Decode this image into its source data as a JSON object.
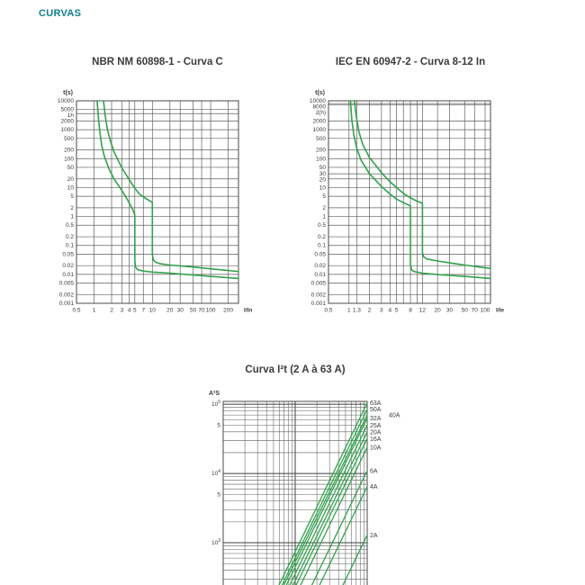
{
  "page": {
    "header": "CURVAS"
  },
  "colors": {
    "header_text": "#0d7c91",
    "title_text": "#3c3c3b",
    "axis_text": "#3c3c3b",
    "curve_green": "#31a24c",
    "grid": "#5f5f5f",
    "grid_major": "#3f3f3f",
    "border": "#4a4a4a",
    "background": "#ffffff"
  },
  "chart_data": [
    {
      "type": "line",
      "title": "NBR NM 60898-1 - Curva C",
      "ylabel": "t(s)",
      "xlabel": "I/In",
      "xscale": "log",
      "yscale": "log",
      "grid": true,
      "minor_grid": false,
      "xlim": [
        0.5,
        300
      ],
      "ylim": [
        0.001,
        10000
      ],
      "xticks": [
        {
          "v": 0.5,
          "l": "0.5"
        },
        {
          "v": 1,
          "l": "1"
        },
        {
          "v": 2,
          "l": "2"
        },
        {
          "v": 3,
          "l": "3"
        },
        {
          "v": 4,
          "l": "4"
        },
        {
          "v": 5,
          "l": "5"
        },
        {
          "v": 7,
          "l": "7"
        },
        {
          "v": 10,
          "l": "10"
        },
        {
          "v": 20,
          "l": "20"
        },
        {
          "v": 30,
          "l": "30"
        },
        {
          "v": 50,
          "l": "50"
        },
        {
          "v": 70,
          "l": "70"
        },
        {
          "v": 100,
          "l": "100"
        },
        {
          "v": 200,
          "l": "200"
        }
      ],
      "yticks": [
        {
          "v": 10000,
          "l": "10000"
        },
        {
          "v": 5000,
          "l": "5000"
        },
        {
          "v": 3600,
          "l": "1h"
        },
        {
          "v": 2000,
          "l": "2000"
        },
        {
          "v": 1000,
          "l": "1000"
        },
        {
          "v": 500,
          "l": "500"
        },
        {
          "v": 200,
          "l": "200"
        },
        {
          "v": 100,
          "l": "100"
        },
        {
          "v": 50,
          "l": "50"
        },
        {
          "v": 20,
          "l": "20"
        },
        {
          "v": 10,
          "l": "10"
        },
        {
          "v": 5,
          "l": "5"
        },
        {
          "v": 2,
          "l": "2"
        },
        {
          "v": 1,
          "l": "1"
        },
        {
          "v": 0.5,
          "l": "0.5"
        },
        {
          "v": 0.2,
          "l": "0.2"
        },
        {
          "v": 0.1,
          "l": "0.1"
        },
        {
          "v": 0.05,
          "l": "0.05"
        },
        {
          "v": 0.02,
          "l": "0.02"
        },
        {
          "v": 0.01,
          "l": "0.01"
        },
        {
          "v": 0.005,
          "l": "0.005"
        },
        {
          "v": 0.002,
          "l": "0.002"
        },
        {
          "v": 0.001,
          "l": "0.001"
        }
      ],
      "series": [
        {
          "name": "trip-min",
          "points": [
            [
              1.13,
              10000
            ],
            [
              1.18,
              3000
            ],
            [
              1.25,
              900
            ],
            [
              1.35,
              300
            ],
            [
              1.5,
              120
            ],
            [
              1.8,
              45
            ],
            [
              2.2,
              20
            ],
            [
              3,
              8
            ],
            [
              4,
              3
            ],
            [
              4.7,
              1.6
            ],
            [
              5,
              1.1
            ],
            [
              5,
              0.03
            ],
            [
              5.15,
              0.018
            ],
            [
              5.6,
              0.0145
            ],
            [
              7,
              0.013
            ],
            [
              10,
              0.012
            ],
            [
              20,
              0.011
            ],
            [
              50,
              0.0095
            ],
            [
              100,
              0.0085
            ],
            [
              300,
              0.0072
            ]
          ]
        },
        {
          "name": "trip-max",
          "points": [
            [
              1.45,
              10000
            ],
            [
              1.55,
              3200
            ],
            [
              1.7,
              1000
            ],
            [
              1.9,
              420
            ],
            [
              2.2,
              170
            ],
            [
              3,
              48
            ],
            [
              4,
              19
            ],
            [
              5,
              9.5
            ],
            [
              6,
              6
            ],
            [
              8,
              4
            ],
            [
              10,
              3.1
            ],
            [
              10,
              0.05
            ],
            [
              10.4,
              0.031
            ],
            [
              11.5,
              0.026
            ],
            [
              14,
              0.023
            ],
            [
              20,
              0.021
            ],
            [
              50,
              0.018
            ],
            [
              100,
              0.0155
            ],
            [
              300,
              0.0125
            ]
          ]
        }
      ]
    },
    {
      "type": "line",
      "title": "IEC EN 60947-2 - Curva 8-12 In",
      "ylabel": "t(s)",
      "xlabel": "I/Ie",
      "xscale": "log",
      "yscale": "log",
      "grid": true,
      "minor_grid": false,
      "xlim": [
        0.5,
        120
      ],
      "ylim": [
        0.001,
        10000
      ],
      "xticks": [
        {
          "v": 0.5,
          "l": "0.5"
        },
        {
          "v": 1,
          "l": "1"
        },
        {
          "v": 1.3,
          "l": "1.3"
        },
        {
          "v": 2,
          "l": "2"
        },
        {
          "v": 3,
          "l": "3"
        },
        {
          "v": 4,
          "l": "4"
        },
        {
          "v": 5,
          "l": "5"
        },
        {
          "v": 6.3,
          "l": ""
        },
        {
          "v": 8,
          "l": "8"
        },
        {
          "v": 10,
          "l": ""
        },
        {
          "v": 12,
          "l": "12"
        },
        {
          "v": 20,
          "l": "20"
        },
        {
          "v": 30,
          "l": "30"
        },
        {
          "v": 50,
          "l": "50"
        },
        {
          "v": 70,
          "l": "70"
        },
        {
          "v": 100,
          "l": "100"
        }
      ],
      "yticks": [
        {
          "v": 10000,
          "l": "10000"
        },
        {
          "v": 8000,
          "l": "8000"
        },
        {
          "v": 7200,
          "l": "2(h)"
        },
        {
          "v": 2000,
          "l": "2000"
        },
        {
          "v": 1000,
          "l": "1000"
        },
        {
          "v": 500,
          "l": "500"
        },
        {
          "v": 200,
          "l": "200"
        },
        {
          "v": 100,
          "l": "100"
        },
        {
          "v": 50,
          "l": "50"
        },
        {
          "v": 30,
          "l": "30"
        },
        {
          "v": 20,
          "l": "20"
        },
        {
          "v": 10,
          "l": "10"
        },
        {
          "v": 5,
          "l": "5"
        },
        {
          "v": 2,
          "l": "2"
        },
        {
          "v": 1,
          "l": "1"
        },
        {
          "v": 0.5,
          "l": "0.5"
        },
        {
          "v": 0.2,
          "l": "0.2"
        },
        {
          "v": 0.1,
          "l": "0.1"
        },
        {
          "v": 0.05,
          "l": "0.05"
        },
        {
          "v": 0.02,
          "l": "0.02"
        },
        {
          "v": 0.01,
          "l": "0.01"
        },
        {
          "v": 0.005,
          "l": "0.005"
        },
        {
          "v": 0.002,
          "l": "0.002"
        },
        {
          "v": 0.001,
          "l": "0.001"
        }
      ],
      "series": [
        {
          "name": "trip-min",
          "points": [
            [
              1.05,
              10000
            ],
            [
              1.1,
              2200
            ],
            [
              1.18,
              650
            ],
            [
              1.3,
              230
            ],
            [
              1.5,
              90
            ],
            [
              2,
              30
            ],
            [
              3,
              11
            ],
            [
              4,
              6
            ],
            [
              5,
              4
            ],
            [
              6.5,
              2.9
            ],
            [
              8,
              2.3
            ],
            [
              8,
              0.022
            ],
            [
              8.3,
              0.0145
            ],
            [
              9,
              0.0125
            ],
            [
              12,
              0.011
            ],
            [
              20,
              0.0098
            ],
            [
              50,
              0.0085
            ],
            [
              120,
              0.0072
            ]
          ]
        },
        {
          "name": "trip-max",
          "points": [
            [
              1.2,
              10000
            ],
            [
              1.28,
              2800
            ],
            [
              1.4,
              850
            ],
            [
              1.6,
              300
            ],
            [
              2,
              110
            ],
            [
              3,
              33
            ],
            [
              4,
              16
            ],
            [
              5,
              10
            ],
            [
              6.5,
              6
            ],
            [
              8,
              4.4
            ],
            [
              10,
              3.4
            ],
            [
              12,
              2.9
            ],
            [
              12,
              0.055
            ],
            [
              12.6,
              0.04
            ],
            [
              14,
              0.034
            ],
            [
              20,
              0.029
            ],
            [
              30,
              0.025
            ],
            [
              50,
              0.021
            ],
            [
              120,
              0.016
            ]
          ]
        }
      ]
    },
    {
      "type": "line",
      "title": "Curva I²t (2 A à 63 A)",
      "ylabel": "A²S",
      "xlabel": "",
      "xscale": "log",
      "yscale": "log",
      "grid": true,
      "minor_grid": true,
      "xlim": [
        100,
        10000
      ],
      "ylim": [
        100,
        110000
      ],
      "xticks": [],
      "yticks": [
        {
          "v": 100000,
          "l": "10^5"
        },
        {
          "v": 50000,
          "l": "5"
        },
        {
          "v": 10000,
          "l": "10^4"
        },
        {
          "v": 5000,
          "l": "5"
        },
        {
          "v": 1000,
          "l": "10^3"
        }
      ],
      "series": [
        {
          "name": "63A",
          "label": "63A",
          "points": [
            [
              394,
              100
            ],
            [
              10000,
              105000
            ]
          ]
        },
        {
          "name": "50A",
          "label": "50A",
          "points": [
            [
              433,
              100
            ],
            [
              10000,
              85000
            ]
          ]
        },
        {
          "name": "40A",
          "label": "40A",
          "label_dx": 21,
          "points": [
            [
              457,
              100
            ],
            [
              10000,
              70000
            ]
          ]
        },
        {
          "name": "32A",
          "label": "32A",
          "points": [
            [
              499,
              100
            ],
            [
              10000,
              63000
            ]
          ]
        },
        {
          "name": "25A",
          "label": "25A",
          "points": [
            [
              555,
              100
            ],
            [
              10000,
              50000
            ]
          ]
        },
        {
          "name": "20A",
          "label": "20A",
          "points": [
            [
              616,
              100
            ],
            [
              10000,
              40000
            ]
          ]
        },
        {
          "name": "16A",
          "label": "16A",
          "points": [
            [
              680,
              100
            ],
            [
              10000,
              32000
            ]
          ]
        },
        {
          "name": "10A",
          "label": "10A",
          "points": [
            [
              782,
              100
            ],
            [
              10000,
              24000
            ]
          ]
        },
        {
          "name": "6A",
          "label": "6A",
          "points": [
            [
              1125,
              100
            ],
            [
              10000,
              11000
            ]
          ]
        },
        {
          "name": "4A",
          "label": "4A",
          "points": [
            [
              1440,
              100
            ],
            [
              10000,
              6500
            ]
          ]
        },
        {
          "name": "2A",
          "label": "2A",
          "points": [
            [
              3034,
              100
            ],
            [
              10000,
              1300
            ]
          ]
        }
      ]
    }
  ]
}
